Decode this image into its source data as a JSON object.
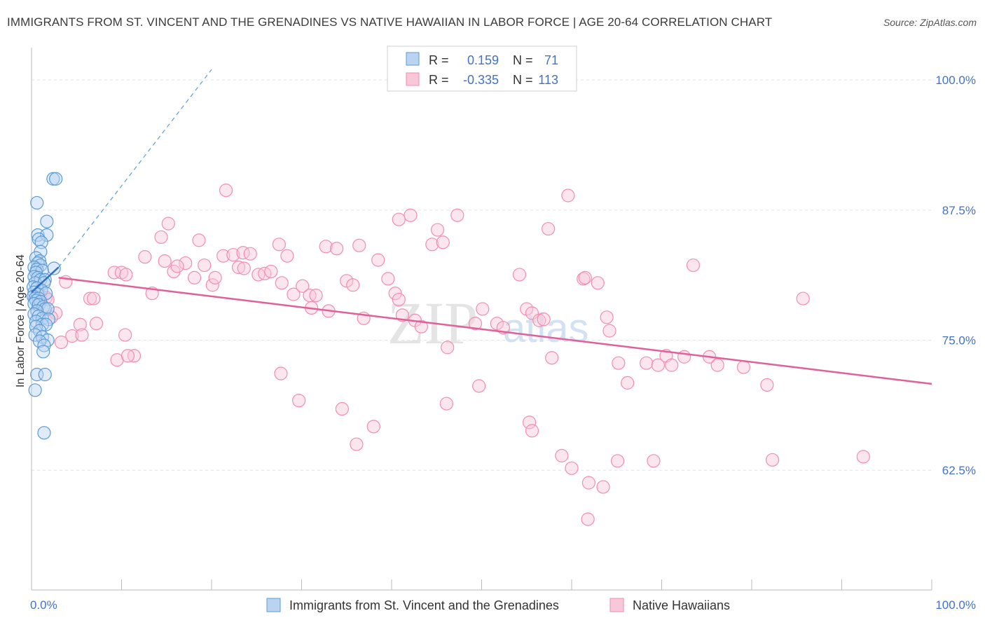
{
  "title": "IMMIGRANTS FROM ST. VINCENT AND THE GRENADINES VS NATIVE HAWAIIAN IN LABOR FORCE | AGE 20-64 CORRELATION CHART",
  "source": "Source: ZipAtlas.com",
  "watermark": {
    "zip": "ZIP",
    "atlas": "atlas"
  },
  "legend": {
    "rows": [
      {
        "r_label": "R =",
        "r_value": "0.159",
        "n_label": "N =",
        "n_value": "71",
        "color": "#5b9bd5"
      },
      {
        "r_label": "R =",
        "r_value": "-0.335",
        "n_label": "N =",
        "n_value": "113",
        "color": "#f08db0"
      }
    ]
  },
  "chart_data": {
    "type": "scatter",
    "title": "IMMIGRANTS FROM ST. VINCENT AND THE GRENADINES VS NATIVE HAWAIIAN IN LABOR FORCE | AGE 20-64 CORRELATION CHART",
    "xlabel": "",
    "ylabel": "In Labor Force | Age 20-64",
    "xlim": [
      0,
      100
    ],
    "ylim": [
      51,
      102.5
    ],
    "x_tick_labels": [
      "0.0%",
      "100.0%"
    ],
    "y_ticks": [
      62.5,
      75.0,
      87.5,
      100.0
    ],
    "y_tick_labels": [
      "62.5%",
      "75.0%",
      "87.5%",
      "100.0%"
    ],
    "grid": true,
    "legend_position": "bottom",
    "series": [
      {
        "name": "Immigrants from St. Vincent and the Grenadines",
        "color": "#5b9bd5",
        "points": [
          [
            2.4,
            90.5
          ],
          [
            2.7,
            90.5
          ],
          [
            0.6,
            88.2
          ],
          [
            1.7,
            86.4
          ],
          [
            0.7,
            85.1
          ],
          [
            1.7,
            85.1
          ],
          [
            0.8,
            84.7
          ],
          [
            1.1,
            84.4
          ],
          [
            1.0,
            83.5
          ],
          [
            0.5,
            82.9
          ],
          [
            0.9,
            82.6
          ],
          [
            0.7,
            82.4
          ],
          [
            1.0,
            82.2
          ],
          [
            0.3,
            82.0
          ],
          [
            0.6,
            81.8
          ],
          [
            1.2,
            81.7
          ],
          [
            2.5,
            81.9
          ],
          [
            0.5,
            81.5
          ],
          [
            0.3,
            81.1
          ],
          [
            0.7,
            81.0
          ],
          [
            1.0,
            80.8
          ],
          [
            1.5,
            80.8
          ],
          [
            0.4,
            80.5
          ],
          [
            1.4,
            80.5
          ],
          [
            0.2,
            80.1
          ],
          [
            0.6,
            80.0
          ],
          [
            1.1,
            79.8
          ],
          [
            0.3,
            79.6
          ],
          [
            0.7,
            79.4
          ],
          [
            1.6,
            79.5
          ],
          [
            0.2,
            79.2
          ],
          [
            0.4,
            79.0
          ],
          [
            0.8,
            79.0
          ],
          [
            0.5,
            78.8
          ],
          [
            1.0,
            78.7
          ],
          [
            0.3,
            78.5
          ],
          [
            0.8,
            78.4
          ],
          [
            1.3,
            78.2
          ],
          [
            1.5,
            78.0
          ],
          [
            1.8,
            78.0
          ],
          [
            0.6,
            77.8
          ],
          [
            0.3,
            77.5
          ],
          [
            0.8,
            77.3
          ],
          [
            1.2,
            77.1
          ],
          [
            1.9,
            77.0
          ],
          [
            0.5,
            76.8
          ],
          [
            1.2,
            76.5
          ],
          [
            1.6,
            76.5
          ],
          [
            0.5,
            76.3
          ],
          [
            0.9,
            75.9
          ],
          [
            0.4,
            75.5
          ],
          [
            1.2,
            75.3
          ],
          [
            1.8,
            75.0
          ],
          [
            0.9,
            74.9
          ],
          [
            1.4,
            74.5
          ],
          [
            1.3,
            73.9
          ],
          [
            0.6,
            71.7
          ],
          [
            1.5,
            71.7
          ],
          [
            0.4,
            70.2
          ],
          [
            1.4,
            66.1
          ]
        ],
        "trend": {
          "x": [
            0,
            3.0
          ],
          "y": [
            79.6,
            82.0
          ],
          "extended_x": [
            3.0,
            20.0
          ],
          "extended_y": [
            82.0,
            101.0
          ]
        }
      },
      {
        "name": "Native Hawaiians",
        "color": "#f08db0",
        "points": [
          [
            1.0,
            79.3
          ],
          [
            1.6,
            79.1
          ],
          [
            1.8,
            78.9
          ],
          [
            0.9,
            78.6
          ],
          [
            2.7,
            77.6
          ],
          [
            2.2,
            77.2
          ],
          [
            3.8,
            80.6
          ],
          [
            6.5,
            79.0
          ],
          [
            6.9,
            79.0
          ],
          [
            7.2,
            76.6
          ],
          [
            5.4,
            76.5
          ],
          [
            4.5,
            75.4
          ],
          [
            5.6,
            75.5
          ],
          [
            3.3,
            74.8
          ],
          [
            9.2,
            81.5
          ],
          [
            10.0,
            81.5
          ],
          [
            10.5,
            81.3
          ],
          [
            12.6,
            83.0
          ],
          [
            14.8,
            82.6
          ],
          [
            13.4,
            79.5
          ],
          [
            9.5,
            73.1
          ],
          [
            11.4,
            73.5
          ],
          [
            10.7,
            73.5
          ],
          [
            10.4,
            75.5
          ],
          [
            15.2,
            86.2
          ],
          [
            14.4,
            84.9
          ],
          [
            17.1,
            82.4
          ],
          [
            15.8,
            81.6
          ],
          [
            16.2,
            82.1
          ],
          [
            18.1,
            81.0
          ],
          [
            18.6,
            84.6
          ],
          [
            19.2,
            82.2
          ],
          [
            20.1,
            80.3
          ],
          [
            20.4,
            81.0
          ],
          [
            21.3,
            83.1
          ],
          [
            22.4,
            83.2
          ],
          [
            23.0,
            82.0
          ],
          [
            23.6,
            81.9
          ],
          [
            23.5,
            83.4
          ],
          [
            24.3,
            83.3
          ],
          [
            25.2,
            81.3
          ],
          [
            25.9,
            81.4
          ],
          [
            26.6,
            81.6
          ],
          [
            27.5,
            84.2
          ],
          [
            28.4,
            83.1
          ],
          [
            27.8,
            80.5
          ],
          [
            29.1,
            79.4
          ],
          [
            30.1,
            80.2
          ],
          [
            30.9,
            79.3
          ],
          [
            31.1,
            78.1
          ],
          [
            31.6,
            79.3
          ],
          [
            32.7,
            84.0
          ],
          [
            33.0,
            77.8
          ],
          [
            33.9,
            83.8
          ],
          [
            35.0,
            80.7
          ],
          [
            35.7,
            80.3
          ],
          [
            36.4,
            84.1
          ],
          [
            36.9,
            77.1
          ],
          [
            38.5,
            82.7
          ],
          [
            39.6,
            80.9
          ],
          [
            40.4,
            79.5
          ],
          [
            40.8,
            78.9
          ],
          [
            41.2,
            77.4
          ],
          [
            42.6,
            76.9
          ],
          [
            43.3,
            76.3
          ],
          [
            44.5,
            84.2
          ],
          [
            45.1,
            85.6
          ],
          [
            45.7,
            84.4
          ],
          [
            46.2,
            74.3
          ],
          [
            47.3,
            87.0
          ],
          [
            49.3,
            76.6
          ],
          [
            50.1,
            78.0
          ],
          [
            51.7,
            76.6
          ],
          [
            52.4,
            76.2
          ],
          [
            54.2,
            81.3
          ],
          [
            55.0,
            78.0
          ],
          [
            55.6,
            77.6
          ],
          [
            56.4,
            76.9
          ],
          [
            56.9,
            77.0
          ],
          [
            57.4,
            85.7
          ],
          [
            59.6,
            88.9
          ],
          [
            61.3,
            80.9
          ],
          [
            61.5,
            81.0
          ],
          [
            62.9,
            80.5
          ],
          [
            63.9,
            77.2
          ],
          [
            64.2,
            75.9
          ],
          [
            65.2,
            72.8
          ],
          [
            66.2,
            70.9
          ],
          [
            68.3,
            72.8
          ],
          [
            69.6,
            72.6
          ],
          [
            70.5,
            73.5
          ],
          [
            71.1,
            72.6
          ],
          [
            72.5,
            73.4
          ],
          [
            73.5,
            82.2
          ],
          [
            75.3,
            73.4
          ],
          [
            76.2,
            72.6
          ],
          [
            79.1,
            72.4
          ],
          [
            81.7,
            70.7
          ],
          [
            85.7,
            79.0
          ],
          [
            57.8,
            73.3
          ],
          [
            21.6,
            89.4
          ],
          [
            27.7,
            71.8
          ],
          [
            29.7,
            69.2
          ],
          [
            34.5,
            68.4
          ],
          [
            36.1,
            65.0
          ],
          [
            38.0,
            66.7
          ],
          [
            40.8,
            86.6
          ],
          [
            42.1,
            87.0
          ],
          [
            46.1,
            68.9
          ],
          [
            49.7,
            70.6
          ],
          [
            55.3,
            67.1
          ],
          [
            55.6,
            66.3
          ],
          [
            58.9,
            63.9
          ],
          [
            60.0,
            62.7
          ],
          [
            61.9,
            61.3
          ],
          [
            65.1,
            63.4
          ],
          [
            69.1,
            63.4
          ],
          [
            63.5,
            60.9
          ],
          [
            61.8,
            57.8
          ],
          [
            82.3,
            63.5
          ],
          [
            92.4,
            63.8
          ]
        ],
        "trend": {
          "x": [
            3.0,
            100.0
          ],
          "y": [
            81.0,
            70.8
          ]
        }
      }
    ]
  }
}
